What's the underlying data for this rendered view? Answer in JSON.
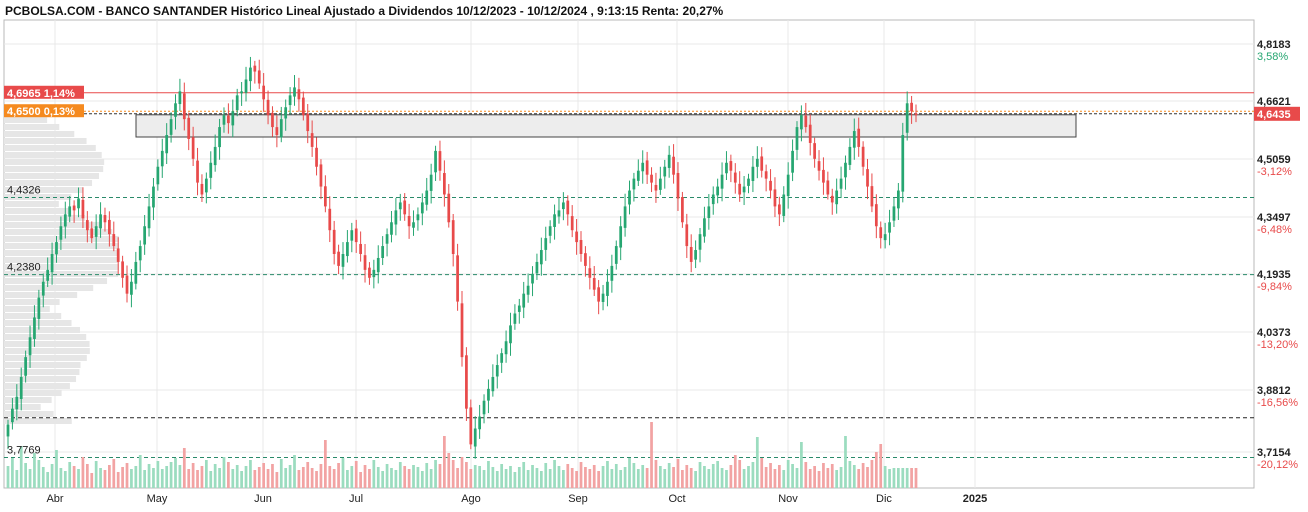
{
  "title": "PCBOLSA.COM - BANCO SANTANDER Histórico Lineal Ajustado a Dividendos 10/12/2023 - 10/12/2024 , 9:13:15 Renta: 20,27%",
  "colors": {
    "up": "#26a671",
    "down": "#e84a4a",
    "orange": "#f58a1f",
    "grid": "#e8e8e8",
    "vol_up": "#9bdcbf",
    "vol_down": "#f2a3a3",
    "profile": "#e6e6e6"
  },
  "chart_data": {
    "type": "candlestick",
    "ylim": [
      3.7,
      4.88
    ],
    "x_axis_labels": [
      "Abr",
      "May",
      "Jun",
      "Jul",
      "Ago",
      "Sep",
      "Oct",
      "Nov",
      "Dic",
      "2025"
    ],
    "y_ticks": [
      {
        "price": "4,8183",
        "pct": "3,58%",
        "color": "green"
      },
      {
        "price": "4,6621",
        "pct": "",
        "color": ""
      },
      {
        "price": "4,5059",
        "pct": "-3,12%",
        "color": "red"
      },
      {
        "price": "4,3497",
        "pct": "-6,48%",
        "color": "red"
      },
      {
        "price": "4,1935",
        "pct": "-9,84%",
        "color": "red"
      },
      {
        "price": "4,0373",
        "pct": "-13,20%",
        "color": "red"
      },
      {
        "price": "3,8812",
        "pct": "-16,56%",
        "color": "red"
      },
      {
        "price": "3,7154",
        "pct": "-20,12%",
        "color": "red"
      }
    ],
    "current_price": "4,6435",
    "annotations": [
      {
        "label": "4,6965  1,14%",
        "value": 4.6965,
        "style": "red-box"
      },
      {
        "label": "4,6500  0,13%",
        "value": 4.65,
        "style": "orange-box"
      },
      {
        "label": "4,4326",
        "value": 4.4326,
        "style": "text"
      },
      {
        "label": "4,2380",
        "value": 4.238,
        "style": "text"
      },
      {
        "label": "3,7769",
        "value": 3.7769,
        "style": "text"
      }
    ],
    "support_lines": [
      4.4326,
      4.238,
      3.877,
      3.7769
    ],
    "resistance_zone": [
      4.585,
      4.641
    ],
    "close": [
      3.86,
      3.9,
      3.93,
      3.98,
      4.03,
      4.08,
      4.13,
      4.18,
      4.22,
      4.25,
      4.29,
      4.32,
      4.36,
      4.39,
      4.41,
      4.4,
      4.43,
      4.38,
      4.35,
      4.33,
      4.36,
      4.39,
      4.37,
      4.34,
      4.31,
      4.27,
      4.23,
      4.19,
      4.22,
      4.27,
      4.31,
      4.36,
      4.41,
      4.46,
      4.51,
      4.55,
      4.59,
      4.63,
      4.67,
      4.7,
      4.63,
      4.58,
      4.53,
      4.47,
      4.44,
      4.48,
      4.52,
      4.56,
      4.61,
      4.64,
      4.62,
      4.65,
      4.69,
      4.7,
      4.73,
      4.76,
      4.75,
      4.72,
      4.68,
      4.64,
      4.61,
      4.59,
      4.63,
      4.66,
      4.69,
      4.71,
      4.68,
      4.64,
      4.6,
      4.56,
      4.51,
      4.46,
      4.41,
      4.35,
      4.29,
      4.26,
      4.29,
      4.32,
      4.35,
      4.32,
      4.29,
      4.25,
      4.23,
      4.25,
      4.28,
      4.31,
      4.34,
      4.37,
      4.4,
      4.42,
      4.39,
      4.36,
      4.37,
      4.39,
      4.42,
      4.45,
      4.49,
      4.55,
      4.5,
      4.44,
      4.37,
      4.29,
      4.17,
      4.03,
      3.9,
      3.81,
      3.85,
      3.88,
      3.92,
      3.95,
      3.98,
      4.01,
      4.04,
      4.07,
      4.11,
      4.14,
      4.16,
      4.19,
      4.21,
      4.24,
      4.27,
      4.3,
      4.33,
      4.36,
      4.39,
      4.4,
      4.42,
      4.39,
      4.35,
      4.32,
      4.29,
      4.26,
      4.23,
      4.2,
      4.17,
      4.19,
      4.22,
      4.26,
      4.31,
      4.36,
      4.41,
      4.45,
      4.48,
      4.5,
      4.52,
      4.49,
      4.47,
      4.45,
      4.48,
      4.51,
      4.54,
      4.49,
      4.43,
      4.37,
      4.31,
      4.27,
      4.3,
      4.34,
      4.38,
      4.41,
      4.44,
      4.46,
      4.49,
      4.52,
      4.5,
      4.47,
      4.44,
      4.46,
      4.48,
      4.51,
      4.53,
      4.5,
      4.48,
      4.45,
      4.41,
      4.39,
      4.44,
      4.49,
      4.55,
      4.61,
      4.64,
      4.61,
      4.57,
      4.53,
      4.5,
      4.47,
      4.44,
      4.42,
      4.45,
      4.48,
      4.52,
      4.56,
      4.6,
      4.56,
      4.51,
      4.46,
      4.41,
      4.36,
      4.33,
      4.34,
      4.37,
      4.41,
      4.45,
      4.59,
      4.67,
      4.65,
      4.64
    ]
  },
  "volume": [
    22,
    30,
    18,
    42,
    25,
    19,
    35,
    28,
    21,
    16,
    24,
    38,
    20,
    17,
    26,
    22,
    19,
    31,
    24,
    15,
    27,
    20,
    18,
    23,
    29,
    16,
    21,
    25,
    19,
    22,
    33,
    18,
    24,
    20,
    27,
    19,
    22,
    26,
    30,
    23,
    40,
    19,
    25,
    18,
    22,
    28,
    17,
    24,
    20,
    31,
    26,
    19,
    23,
    17,
    22,
    28,
    18,
    21,
    25,
    19,
    24,
    16,
    29,
    20,
    23,
    33,
    18,
    21,
    26,
    20,
    17,
    24,
    48,
    22,
    19,
    25,
    30,
    18,
    22,
    27,
    16,
    23,
    19,
    28,
    21,
    17,
    24,
    20,
    18,
    26,
    22,
    19,
    23,
    21,
    17,
    25,
    19,
    28,
    24,
    52,
    35,
    28,
    20,
    31,
    26,
    19,
    23,
    22,
    18,
    27,
    21,
    17,
    24,
    19,
    22,
    16,
    21,
    26,
    18,
    23,
    20,
    17,
    25,
    19,
    28,
    22,
    18,
    24,
    20,
    17,
    26,
    21,
    19,
    23,
    17,
    22,
    27,
    19,
    24,
    18,
    21,
    30,
    25,
    19,
    23,
    20,
    66,
    28,
    22,
    19,
    25,
    21,
    29,
    18,
    23,
    20,
    17,
    26,
    22,
    19,
    24,
    27,
    20,
    18,
    23,
    33,
    28,
    19,
    22,
    26,
    51,
    30,
    21,
    25,
    19,
    23,
    18,
    28,
    24,
    20,
    46,
    26,
    19,
    22,
    17,
    25,
    20,
    24,
    18,
    21,
    52,
    27,
    23,
    19,
    25,
    21,
    28,
    36,
    44,
    22,
    19
  ]
}
